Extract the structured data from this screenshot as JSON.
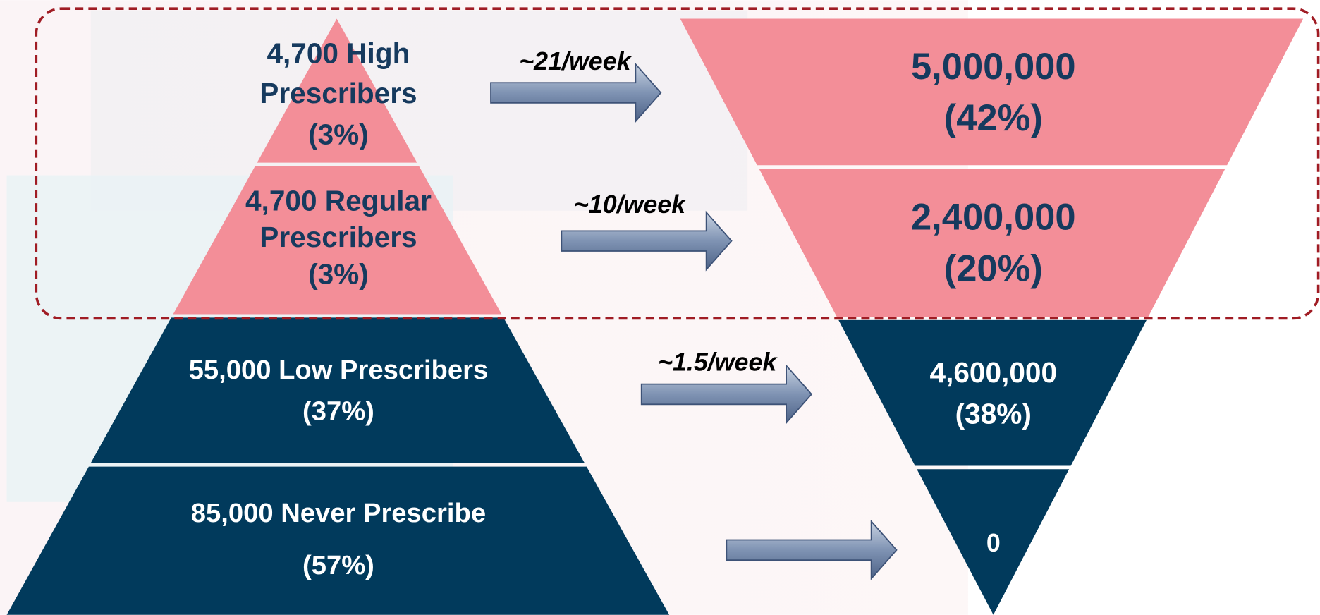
{
  "pyramid": [
    {
      "lines": [
        "4,700 High",
        "Prescribers",
        "(3%)"
      ]
    },
    {
      "lines": [
        "4,700 Regular",
        "Prescribers",
        "(3%)"
      ]
    },
    {
      "lines": [
        "55,000 Low Prescribers",
        "(37%)"
      ]
    },
    {
      "lines": [
        "85,000 Never Prescribe",
        "(57%)"
      ]
    }
  ],
  "arrows": [
    "~21/week",
    "~10/week",
    "~1.5/week"
  ],
  "funnel": [
    {
      "lines": [
        "5,000,000",
        "(42%)"
      ]
    },
    {
      "lines": [
        "2,400,000",
        "(20%)"
      ]
    },
    {
      "lines": [
        "4,600,000",
        "(38%)"
      ]
    },
    {
      "lines": [
        "0"
      ]
    }
  ]
}
